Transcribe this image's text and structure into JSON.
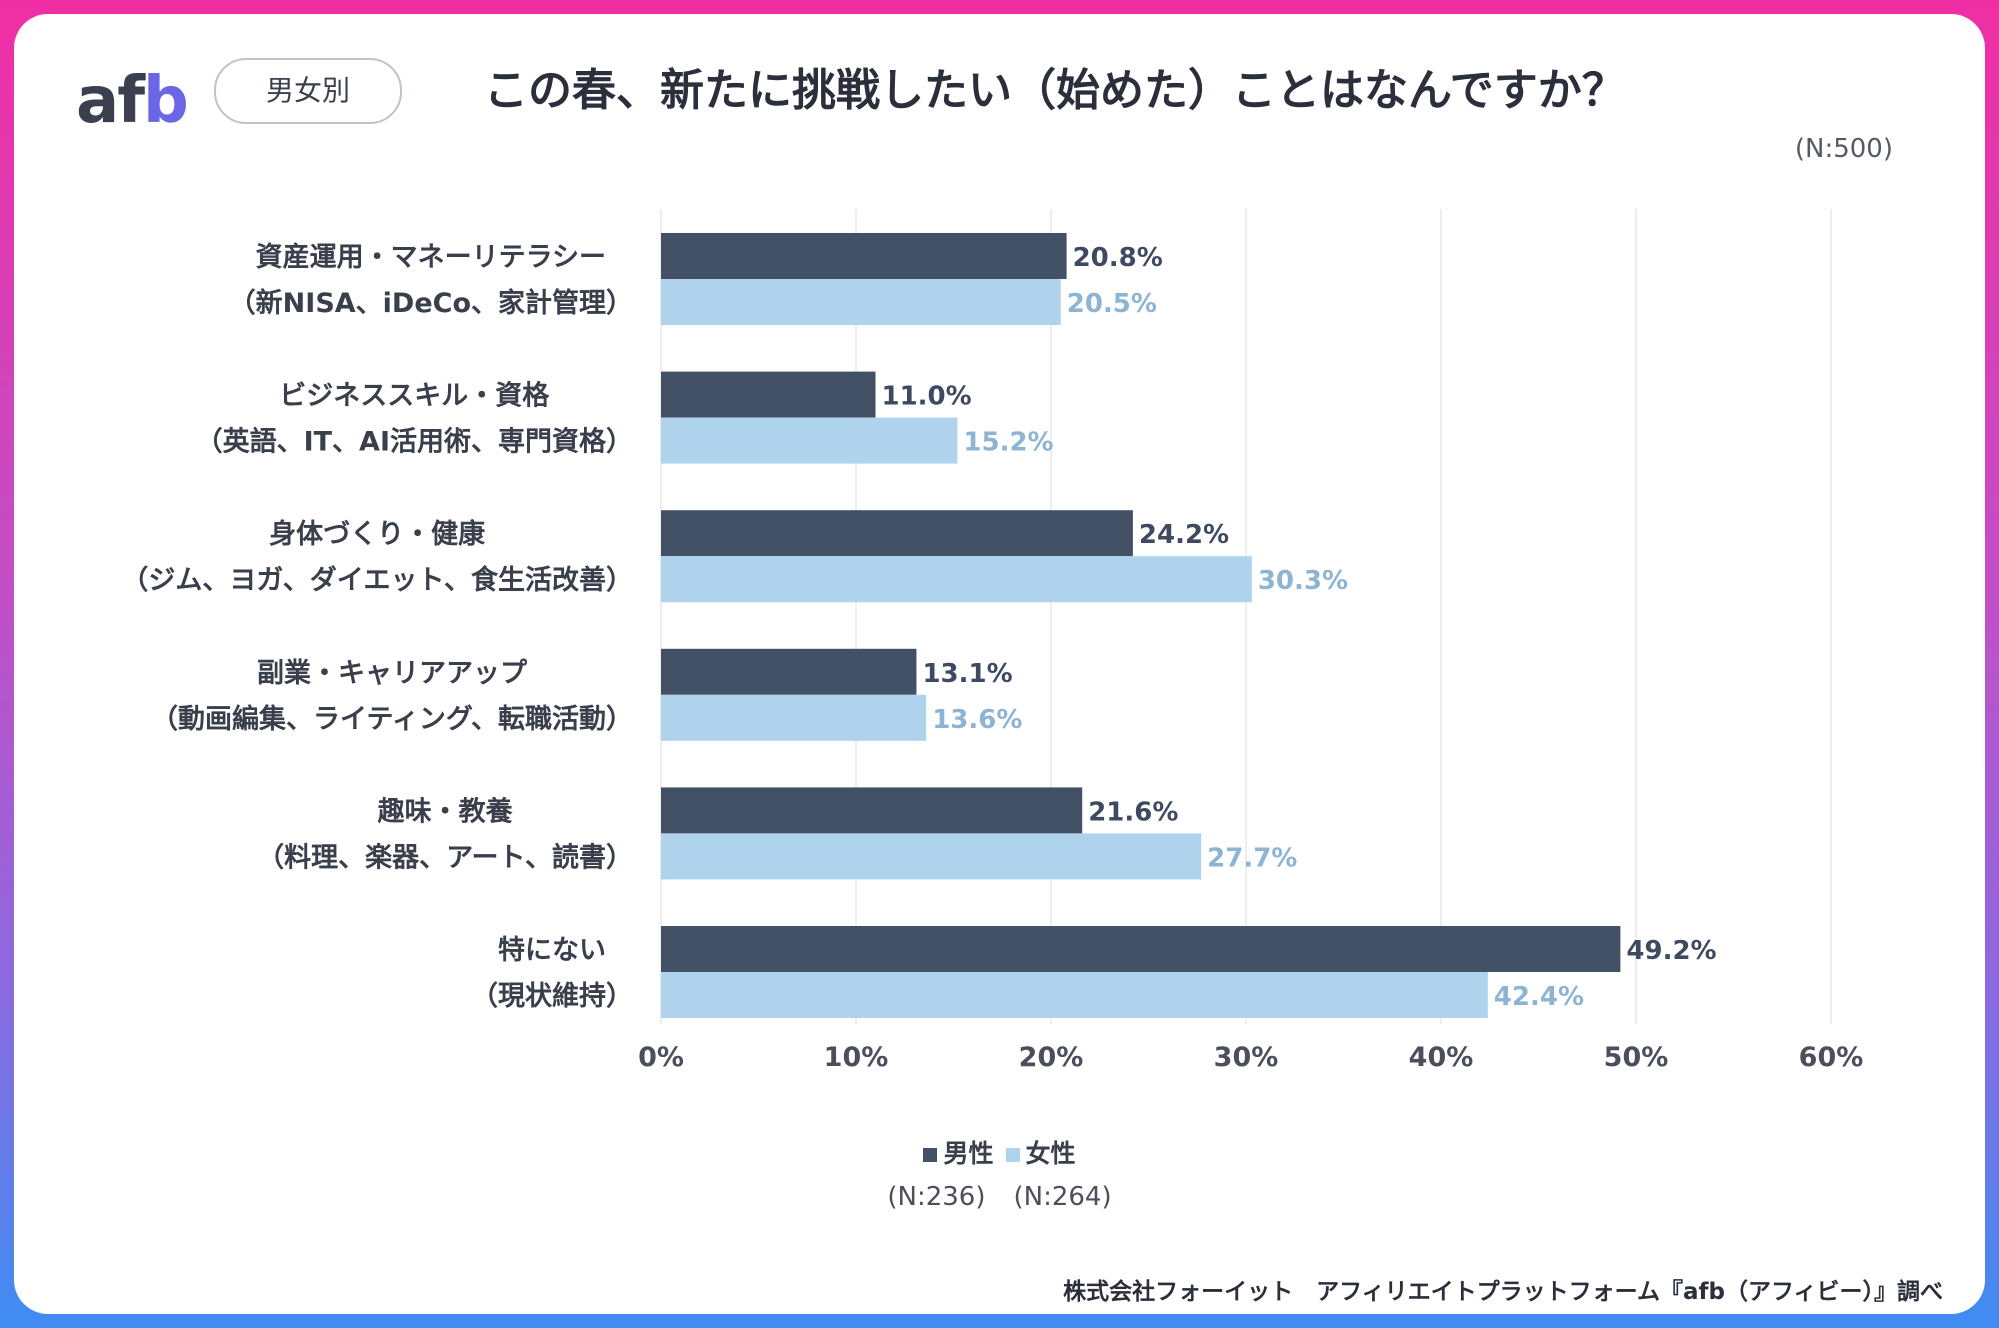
{
  "brand": {
    "logo_a": "a",
    "logo_f": "f",
    "logo_b": "b",
    "tag": "男女別"
  },
  "header": {
    "title": "この春、新たに挑戦したい（始めた）ことはなんですか？",
    "total_n": "(N:500)"
  },
  "colors": {
    "male": "#435166",
    "female": "#afd3ec",
    "grid": "#e6e8ec"
  },
  "chart_data": {
    "type": "bar",
    "orientation": "horizontal",
    "categories": [
      [
        "資産運用・マネーリテラシー",
        "（新NISA、iDeCo、家計管理）"
      ],
      [
        "ビジネススキル・資格",
        "（英語、IT、AI活用術、専門資格）"
      ],
      [
        "身体づくり・健康",
        "（ジム、ヨガ、ダイエット、食生活改善）"
      ],
      [
        "副業・キャリアアップ",
        "（動画編集、ライティング、転職活動）"
      ],
      [
        "趣味・教養",
        "（料理、楽器、アート、読書）"
      ],
      [
        "特にない",
        "（現状維持）"
      ]
    ],
    "series": [
      {
        "name": "男性",
        "values": [
          20.8,
          11.0,
          24.2,
          13.1,
          21.6,
          49.2
        ]
      },
      {
        "name": "女性",
        "values": [
          20.5,
          15.2,
          30.3,
          13.6,
          27.7,
          42.4
        ]
      }
    ],
    "value_labels": [
      [
        "20.8%",
        "11.0%",
        "24.2%",
        "13.1%",
        "21.6%",
        "49.2%"
      ],
      [
        "20.5%",
        "15.2%",
        "30.3%",
        "13.6%",
        "27.7%",
        "42.4%"
      ]
    ],
    "xlim": [
      0,
      60
    ],
    "x_ticks": [
      "0%",
      "10%",
      "20%",
      "30%",
      "40%",
      "50%",
      "60%"
    ],
    "grid": true,
    "legend_position": "bottom"
  },
  "legend": {
    "male_label": "男性",
    "female_label": "女性",
    "male_n": "(N:236)",
    "female_n": "(N:264)"
  },
  "footer": {
    "source": "株式会社フォーイット　アフィリエイトプラットフォーム『afb（アフィビー）』調べ"
  }
}
